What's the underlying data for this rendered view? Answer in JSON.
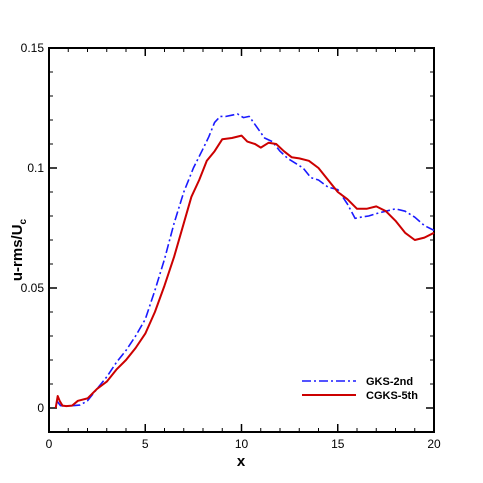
{
  "chart_data": {
    "type": "line",
    "xlabel": "x",
    "ylabel_main": "u-rms/U",
    "ylabel_sub": "c",
    "xlim": [
      0,
      20
    ],
    "ylim": [
      -0.01,
      0.15
    ],
    "xticks": [
      "0",
      "5",
      "10",
      "15",
      "20"
    ],
    "yticks": [
      "0",
      "0.05",
      "0.1",
      "0.15"
    ],
    "ytick_values": [
      0,
      0.05,
      0.1,
      0.15
    ],
    "xtick_values": [
      0,
      5,
      10,
      15,
      20
    ],
    "grid": false,
    "legend_position": "lower-right",
    "series": [
      {
        "name": "GKS-2nd",
        "color": "#1a1aff",
        "style": "dashdot",
        "x": [
          0.4,
          0.6,
          0.8,
          1.0,
          1.3,
          1.6,
          2.0,
          2.5,
          3.0,
          3.5,
          4.0,
          4.5,
          5.0,
          5.5,
          6.0,
          6.5,
          7.0,
          7.5,
          8.0,
          8.3,
          8.6,
          8.9,
          9.2,
          9.5,
          9.8,
          10.1,
          10.4,
          10.8,
          11.2,
          11.6,
          12.0,
          12.4,
          12.8,
          13.2,
          13.6,
          14.0,
          14.5,
          15.0,
          15.5,
          15.9,
          16.2,
          16.6,
          17.0,
          17.5,
          18.0,
          18.5,
          19.0,
          19.5,
          20.0
        ],
        "y": [
          0.003,
          0.001,
          0.0008,
          0.0009,
          0.001,
          0.0012,
          0.003,
          0.008,
          0.013,
          0.019,
          0.024,
          0.03,
          0.037,
          0.049,
          0.062,
          0.077,
          0.09,
          0.1,
          0.108,
          0.113,
          0.119,
          0.1215,
          0.1215,
          0.122,
          0.1225,
          0.121,
          0.1215,
          0.117,
          0.1125,
          0.111,
          0.107,
          0.104,
          0.102,
          0.1,
          0.096,
          0.095,
          0.092,
          0.091,
          0.085,
          0.079,
          0.0795,
          0.08,
          0.081,
          0.082,
          0.083,
          0.082,
          0.0795,
          0.076,
          0.074
        ]
      },
      {
        "name": "CGKS-5th",
        "color": "#cc0000",
        "style": "solid",
        "x": [
          0.35,
          0.45,
          0.55,
          0.7,
          0.9,
          1.2,
          1.5,
          2.0,
          2.5,
          3.0,
          3.5,
          4.0,
          4.5,
          5.0,
          5.5,
          6.0,
          6.5,
          7.0,
          7.4,
          7.8,
          8.2,
          8.6,
          9.0,
          9.5,
          10.0,
          10.3,
          10.7,
          11.0,
          11.4,
          11.8,
          12.2,
          12.6,
          13.0,
          13.5,
          14.0,
          14.5,
          15.0,
          15.5,
          16.0,
          16.5,
          17.0,
          17.5,
          18.0,
          18.5,
          19.0,
          19.5,
          20.0
        ],
        "y": [
          0.0,
          0.005,
          0.003,
          0.001,
          0.0008,
          0.001,
          0.003,
          0.004,
          0.008,
          0.011,
          0.016,
          0.02,
          0.025,
          0.031,
          0.04,
          0.051,
          0.063,
          0.077,
          0.088,
          0.095,
          0.103,
          0.107,
          0.112,
          0.1125,
          0.1135,
          0.111,
          0.11,
          0.1085,
          0.1105,
          0.11,
          0.107,
          0.1045,
          0.104,
          0.103,
          0.1,
          0.095,
          0.09,
          0.087,
          0.083,
          0.083,
          0.084,
          0.082,
          0.078,
          0.073,
          0.07,
          0.071,
          0.073
        ]
      }
    ]
  }
}
